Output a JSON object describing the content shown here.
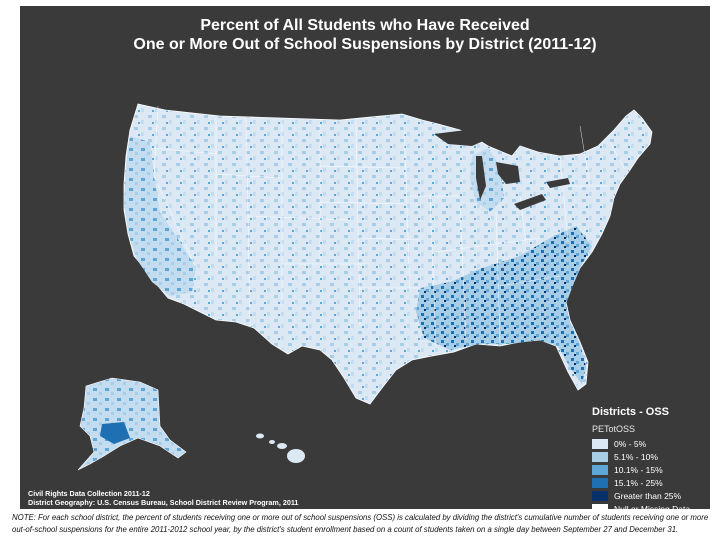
{
  "title_line1": "Percent of All Students who Have Received",
  "title_line2": "One or More Out of School Suspensions by District (2011-12)",
  "legend": {
    "title": "Districts - OSS",
    "field": "PETotOSS",
    "items": [
      {
        "label": "0% - 5%",
        "color": "#dce9f5"
      },
      {
        "label": "5.1% - 10%",
        "color": "#a8cde6"
      },
      {
        "label": "10.1% - 15%",
        "color": "#5ea6d6"
      },
      {
        "label": "15.1% - 25%",
        "color": "#1f6fb3"
      },
      {
        "label": "Greater than 25%",
        "color": "#08306b"
      },
      {
        "label": "Null or Missing Data",
        "color": "#ffffff"
      }
    ]
  },
  "source_line1": "Civil Rights Data Collection 2011-12",
  "source_line2": "District Geography: U.S. Census Bureau, School District Review Program, 2011",
  "note": "NOTE: For each school district, the percent of students receiving one or more out of school suspensions (OSS) is calculated by dividing the district's cumulative number of students receiving one or more out-of-school suspensions for the entire 2011-2012 school year, by the district's student enrollment based on a count of students taken on a single day between September 27 and December 31."
}
